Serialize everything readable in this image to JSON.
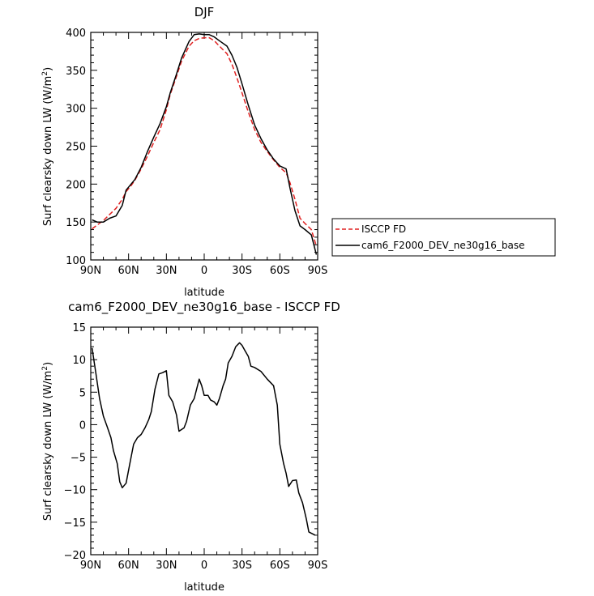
{
  "chart_data": [
    {
      "type": "line",
      "title": "DJF",
      "xlabel": "latitude",
      "ylabel": "Surf clearsky down LW (W/m²)",
      "ylabel_main": "Surf clearsky down LW (W/m",
      "ylabel_sup": "2",
      "ylabel_end": ")",
      "xlim": [
        90,
        -90
      ],
      "ylim": [
        100,
        400
      ],
      "x_ticks": [
        90,
        60,
        30,
        0,
        -30,
        -60,
        -90
      ],
      "x_tick_labels": [
        "90N",
        "60N",
        "30N",
        "0",
        "30S",
        "60S",
        "90S"
      ],
      "y_ticks": [
        100,
        150,
        200,
        250,
        300,
        350,
        400
      ],
      "y_tick_labels": [
        "100",
        "150",
        "200",
        "250",
        "300",
        "350",
        "400"
      ],
      "legend_position": "right",
      "series": [
        {
          "name": "ISCCP FD",
          "color": "#e02020",
          "dash": true,
          "x": [
            89,
            85,
            80,
            75,
            70,
            65,
            62,
            58,
            55,
            50,
            45,
            40,
            35,
            30,
            27,
            22,
            18,
            12,
            8,
            4,
            0,
            -4,
            -8,
            -12,
            -18,
            -22,
            -26,
            -30,
            -35,
            -40,
            -45,
            -50,
            -55,
            -60,
            -65,
            -68,
            -72,
            -76,
            -80,
            -85,
            -89
          ],
          "values": [
            141,
            146,
            152,
            160,
            168,
            180,
            190,
            198,
            205,
            220,
            237,
            255,
            272,
            298,
            318,
            342,
            362,
            382,
            389,
            392,
            393,
            393,
            389,
            382,
            372,
            358,
            340,
            320,
            295,
            272,
            255,
            243,
            232,
            222,
            215,
            202,
            180,
            155,
            148,
            140,
            118
          ]
        },
        {
          "name": "cam6_F2000_DEV_ne30g16_base",
          "color": "#000000",
          "dash": false,
          "x": [
            89,
            85,
            80,
            75,
            70,
            65,
            62,
            58,
            55,
            50,
            45,
            40,
            35,
            30,
            27,
            22,
            18,
            12,
            8,
            4,
            0,
            -4,
            -8,
            -12,
            -18,
            -22,
            -26,
            -30,
            -35,
            -40,
            -45,
            -50,
            -55,
            -60,
            -65,
            -68,
            -72,
            -76,
            -80,
            -85,
            -89
          ],
          "values": [
            153,
            150,
            150,
            155,
            158,
            172,
            192,
            200,
            206,
            222,
            243,
            262,
            280,
            302,
            320,
            345,
            366,
            388,
            397,
            398,
            397,
            397,
            394,
            389,
            382,
            370,
            354,
            332,
            304,
            278,
            260,
            245,
            233,
            224,
            220,
            195,
            165,
            145,
            140,
            133,
            107
          ]
        }
      ]
    },
    {
      "type": "line",
      "title": "cam6_F2000_DEV_ne30g16_base - ISCCP FD",
      "xlabel": "latitude",
      "ylabel": "Surf clearsky down LW (W/m²)",
      "ylabel_main": "Surf clearsky down LW (W/m",
      "ylabel_sup": "2",
      "ylabel_end": ")",
      "xlim": [
        90,
        -90
      ],
      "ylim": [
        -20,
        15
      ],
      "x_ticks": [
        90,
        60,
        30,
        0,
        -30,
        -60,
        -90
      ],
      "x_tick_labels": [
        "90N",
        "60N",
        "30N",
        "0",
        "30S",
        "60S",
        "90S"
      ],
      "y_ticks": [
        -20,
        -15,
        -10,
        -5,
        0,
        5,
        10,
        15
      ],
      "y_tick_labels": [
        "−20",
        "−15",
        "−10",
        "−5",
        "0",
        "5",
        "10",
        "15"
      ],
      "series": [
        {
          "color": "#000000",
          "dash": false,
          "x": [
            89,
            86,
            83,
            80,
            77,
            74,
            72,
            69,
            67,
            65,
            62,
            59,
            56,
            53,
            50,
            47,
            44,
            42,
            39,
            36,
            33,
            30,
            28,
            25,
            22,
            20,
            16,
            14,
            11,
            8,
            6,
            4,
            2,
            0,
            -3,
            -5,
            -8,
            -10,
            -12,
            -15,
            -17,
            -19,
            -22,
            -25,
            -28,
            -30,
            -32,
            -35,
            -37,
            -40,
            -45,
            -50,
            -55,
            -58,
            -60,
            -63,
            -65,
            -67,
            -70,
            -73,
            -75,
            -78,
            -81,
            -83,
            -86,
            -88
          ],
          "values": [
            11.8,
            8,
            4,
            1.3,
            -0.3,
            -2,
            -4,
            -6,
            -8.8,
            -9.7,
            -9,
            -6,
            -3,
            -2,
            -1.5,
            -0.5,
            0.8,
            2,
            5.5,
            7.8,
            8.0,
            8.3,
            4.5,
            3.5,
            1.5,
            -1,
            -0.5,
            0.5,
            3,
            4,
            5.5,
            7,
            6,
            4.5,
            4.5,
            3.8,
            3.5,
            3,
            4,
            6,
            7,
            9.5,
            10.5,
            12,
            12.6,
            12.2,
            11.5,
            10.5,
            9,
            8.8,
            8.2,
            7,
            6,
            3,
            -3,
            -6,
            -7.5,
            -9.5,
            -8.6,
            -8.5,
            -10.5,
            -12,
            -14.5,
            -16.5,
            -16.8,
            -17
          ]
        }
      ]
    }
  ]
}
